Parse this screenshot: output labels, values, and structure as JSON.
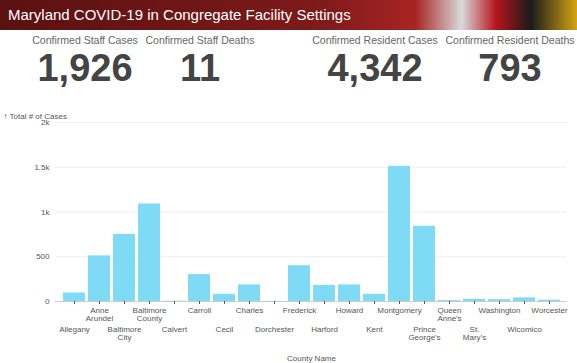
{
  "header": {
    "title": "Maryland COVID-19 in Congregate Facility Settings"
  },
  "stats": [
    {
      "label": "Confirmed Staff Cases",
      "value": "1,926"
    },
    {
      "label": "Confirmed Staff Deaths",
      "value": "11"
    },
    {
      "label": "Confirmed Resident Cases",
      "value": "4,342"
    },
    {
      "label": "Confirmed Resident Deaths",
      "value": "793"
    }
  ],
  "chart_data": {
    "type": "bar",
    "x_label": "County Name",
    "y_label": "Total # of Cases",
    "categories": [
      "Allegany",
      "Anne Arundel",
      "Baltimore City",
      "Baltimore County",
      "Calvert",
      "Carroll",
      "Cecil",
      "Charles",
      "Dorchester",
      "Frederick",
      "Harford",
      "Howard",
      "Kent",
      "Montgomery",
      "Prince George's",
      "Queen Anne's",
      "St. Mary's",
      "Washington",
      "Wicomico",
      "Worcester"
    ],
    "values": [
      95,
      510,
      750,
      1090,
      3,
      300,
      80,
      185,
      2,
      400,
      180,
      185,
      80,
      1510,
      840,
      10,
      25,
      20,
      40,
      15
    ],
    "color": "#7fdaf5",
    "ylim": [
      0,
      2000
    ],
    "yticks": [
      0,
      500,
      {
        "value": 1000,
        "label": "1k"
      },
      {
        "value": 1500,
        "label": "1.5k"
      },
      {
        "value": 2000,
        "label": "2k"
      }
    ],
    "grid": true
  }
}
